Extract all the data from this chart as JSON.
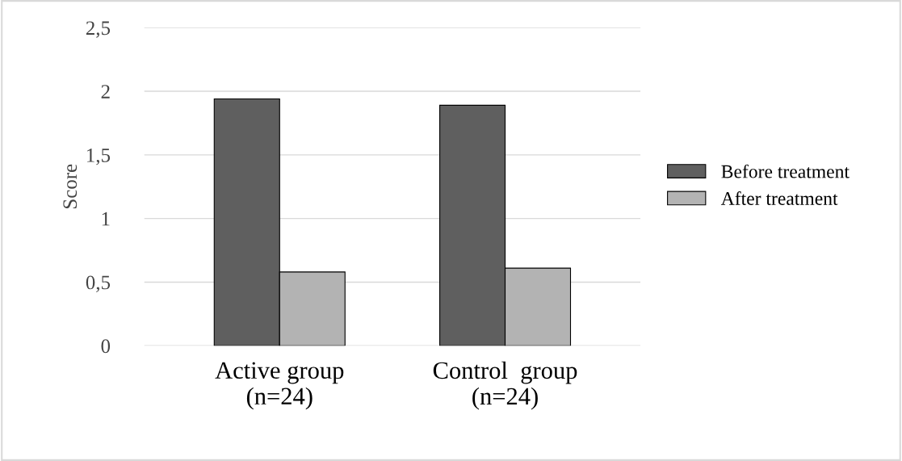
{
  "chart_data": {
    "type": "bar",
    "ylabel": "Score",
    "categories": [
      "Active group\n(n=24)",
      "Control  group\n(n=24)"
    ],
    "series": [
      {
        "name": "Before treatment",
        "color": "#5f5f5f",
        "values": [
          1.94,
          1.89
        ]
      },
      {
        "name": "After treatment",
        "color": "#b3b3b3",
        "values": [
          0.58,
          0.61
        ]
      }
    ],
    "ylim": [
      0,
      2.5
    ],
    "yticks": [
      0,
      {
        "value": 0.5,
        "label": "0,5"
      },
      1,
      {
        "value": 1.5,
        "label": "1,5"
      },
      2,
      {
        "value": 2.5,
        "label": "2,5"
      }
    ],
    "grid": "y",
    "legend": "right"
  }
}
